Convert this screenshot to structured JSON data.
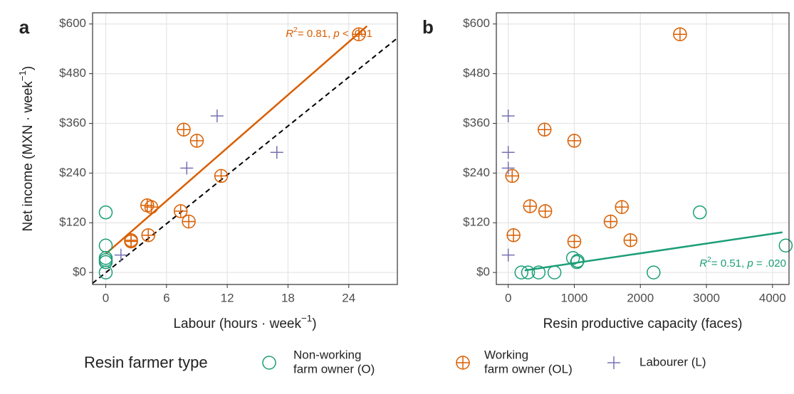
{
  "chart_data": [
    {
      "type": "scatter",
      "panel_label": "a",
      "xlabel": [
        "Labour (hours · week",
        "−1",
        ")"
      ],
      "ylabel": [
        "Net income (MXN · week",
        "−1",
        ")"
      ],
      "xlim": [
        -1.3,
        28.8
      ],
      "ylim": [
        -29,
        627
      ],
      "xticks": [
        0,
        6,
        12,
        18,
        24
      ],
      "yticks": [
        {
          "value": 0,
          "label": "$0"
        },
        {
          "value": 120,
          "label": "$120"
        },
        {
          "value": 240,
          "label": "$240"
        },
        {
          "value": 360,
          "label": "$360"
        },
        {
          "value": 480,
          "label": "$480"
        },
        {
          "value": 600,
          "label": "$600"
        }
      ],
      "grid": true,
      "series": [
        {
          "color": "#1b9e77",
          "shape": "circle",
          "x": [
            0,
            0,
            0,
            0,
            0,
            0
          ],
          "y": [
            145,
            65,
            35,
            30,
            25,
            0
          ]
        },
        {
          "color": "#d95f02",
          "shape": "circle-plus",
          "x": [
            25,
            7.7,
            9,
            11.4,
            4.1,
            4.5,
            7.4,
            8.2,
            4.2,
            2.5,
            2.5
          ],
          "y": [
            575,
            345,
            318,
            233,
            162,
            158,
            148,
            123,
            90,
            78,
            75
          ]
        },
        {
          "color": "#7570b3",
          "shape": "plus",
          "x": [
            11,
            16.9,
            8,
            1.5
          ],
          "y": [
            378,
            290,
            252,
            42
          ]
        }
      ],
      "fit": {
        "color": "#d95f02",
        "x": [
          0,
          25.8
        ],
        "y": [
          45,
          595
        ]
      },
      "reference_line": {
        "color": "#000000",
        "x": [
          -1.3,
          28.8
        ],
        "y": [
          -26,
          566
        ]
      },
      "annotation": {
        "color": "#d95f02",
        "parts": [
          "R",
          "2",
          "= 0.81, ",
          "p",
          " < .001"
        ]
      }
    },
    {
      "type": "scatter",
      "panel_label": "b",
      "xlabel": [
        "Resin productive capacity (faces)"
      ],
      "xlim": [
        -180,
        4250
      ],
      "ylim": [
        -29,
        627
      ],
      "xticks": [
        0,
        1000,
        2000,
        3000,
        4000
      ],
      "yticks": [
        {
          "value": 0,
          "label": "$0"
        },
        {
          "value": 120,
          "label": "$120"
        },
        {
          "value": 240,
          "label": "$240"
        },
        {
          "value": 360,
          "label": "$360"
        },
        {
          "value": 480,
          "label": "$480"
        },
        {
          "value": 600,
          "label": "$600"
        }
      ],
      "grid": true,
      "series": [
        {
          "color": "#1b9e77",
          "shape": "circle",
          "x": [
            2900,
            4200,
            980,
            1050,
            1040,
            200,
            300,
            460,
            700,
            2200
          ],
          "y": [
            145,
            65,
            35,
            28,
            25,
            0,
            0,
            0,
            0,
            0
          ]
        },
        {
          "color": "#d95f02",
          "shape": "circle-plus",
          "x": [
            2600,
            550,
            1000,
            60,
            330,
            1720,
            560,
            1550,
            80,
            1850,
            1000
          ],
          "y": [
            575,
            345,
            318,
            233,
            160,
            158,
            148,
            123,
            90,
            78,
            75
          ]
        },
        {
          "color": "#7570b3",
          "shape": "plus",
          "x": [
            0,
            0,
            0,
            0
          ],
          "y": [
            378,
            290,
            252,
            42
          ]
        }
      ],
      "fit": {
        "color": "#1b9e77",
        "x": [
          250,
          4150
        ],
        "y": [
          5,
          97
        ]
      },
      "annotation": {
        "color": "#1b9e77",
        "parts": [
          "R",
          "2",
          "= 0.51, ",
          "p",
          " = .020"
        ]
      }
    }
  ],
  "legend": {
    "title": "Resin farmer type",
    "entries": [
      {
        "lines": [
          "Non-working",
          "farm owner (O)"
        ]
      },
      {
        "lines": [
          "Working",
          "farm owner (OL)"
        ]
      },
      {
        "lines": [
          "Labourer (L)"
        ]
      }
    ]
  }
}
